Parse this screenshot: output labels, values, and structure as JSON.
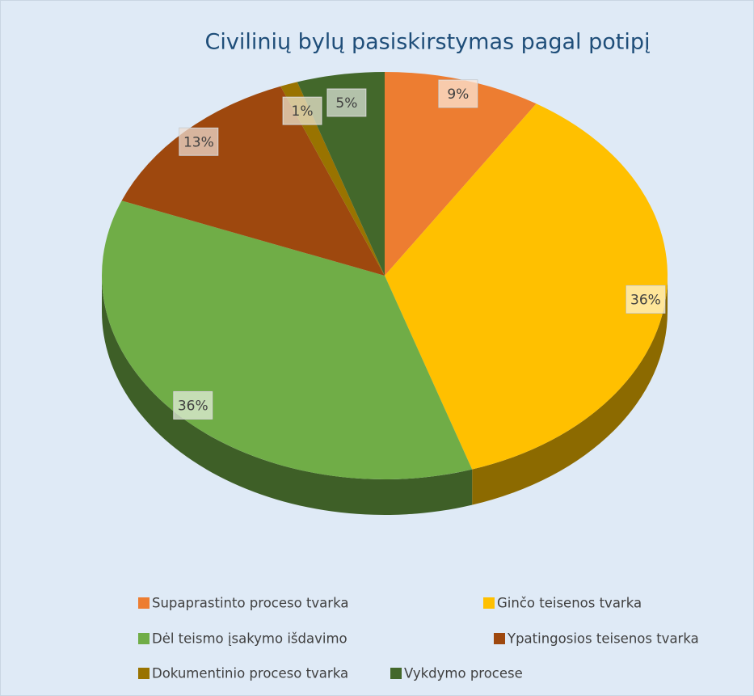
{
  "chart_data": {
    "type": "pie",
    "title": "Civilinių bylų pasiskirstymas pagal potipį",
    "categories": [
      "Supaprastinto proceso tvarka",
      "Ginčo teisenos tvarka",
      "Dėl teismo įsakymo išdavimo",
      "Ypatingosios teisenos tvarka",
      "Dokumentinio proceso tvarka",
      "Vykdymo procese"
    ],
    "values": [
      9,
      36,
      36,
      13,
      1,
      5
    ],
    "value_labels": [
      "9%",
      "36%",
      "36%",
      "13%",
      "1%",
      "5%"
    ],
    "colors": [
      "#ed7d31",
      "#ffc000",
      "#70ad47",
      "#9e480e",
      "#997300",
      "#43682b"
    ],
    "legend": "bottom"
  }
}
